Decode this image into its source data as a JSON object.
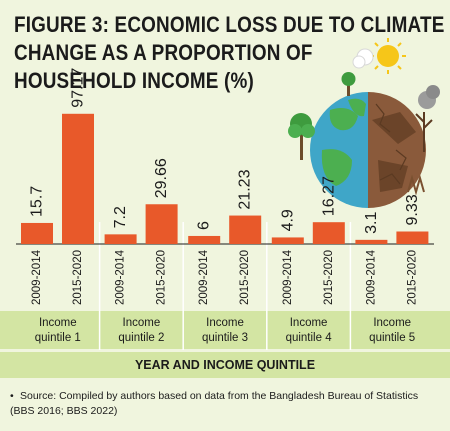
{
  "title_lines": [
    "FIGURE 3: ECONOMIC LOSS DUE TO CLIMATE",
    "CHANGE AS A PROPORTION OF",
    "HOUSEHOLD INCOME (%)"
  ],
  "chart_data": {
    "type": "bar",
    "title": "FIGURE 3: ECONOMIC LOSS DUE TO CLIMATE CHANGE AS A PROPORTION OF HOUSEHOLD INCOME (%)",
    "xlabel": "YEAR AND INCOME QUINTILE",
    "ylabel": "",
    "groups": [
      {
        "label": "Income quintile 1",
        "label_lines": [
          "Income",
          "quintile 1"
        ],
        "bars": [
          {
            "period": "2009-2014",
            "value": 15.7,
            "label": "15.7"
          },
          {
            "period": "2015-2020",
            "value": 97.17,
            "label": "97.17"
          }
        ]
      },
      {
        "label": "Income quintile 2",
        "label_lines": [
          "Income",
          "quintile 2"
        ],
        "bars": [
          {
            "period": "2009-2014",
            "value": 7.2,
            "label": "7.2"
          },
          {
            "period": "2015-2020",
            "value": 29.66,
            "label": "29.66"
          }
        ]
      },
      {
        "label": "Income quintile 3",
        "label_lines": [
          "Income",
          "quintile 3"
        ],
        "bars": [
          {
            "period": "2009-2014",
            "value": 6,
            "label": "6"
          },
          {
            "period": "2015-2020",
            "value": 21.23,
            "label": "21.23"
          }
        ]
      },
      {
        "label": "Income quintile 4",
        "label_lines": [
          "Income",
          "quintile 4"
        ],
        "bars": [
          {
            "period": "2009-2014",
            "value": 4.9,
            "label": "4.9"
          },
          {
            "period": "2015-2020",
            "value": 16.27,
            "label": "16.27"
          }
        ]
      },
      {
        "label": "Income quintile 5",
        "label_lines": [
          "Income",
          "quintile 5"
        ],
        "bars": [
          {
            "period": "2009-2014",
            "value": 3.1,
            "label": "3.1"
          },
          {
            "period": "2015-2020",
            "value": 9.33,
            "label": "9.33"
          }
        ]
      }
    ],
    "ylim": [
      0,
      100
    ],
    "grid": false,
    "legend": "none",
    "bar_color": "#e8592a"
  },
  "source": "Source: Compiled by authors based on data from the Bangladesh Bureau of Statistics (BBS 2016; BBS 2022)",
  "colors": {
    "background": "#f0f5de",
    "band": "#d3e5a3",
    "bar": "#e8592a",
    "divider": "#ffffff",
    "text": "#1b1b1b"
  },
  "illustration": "earth-half-green-half-drought-icon"
}
